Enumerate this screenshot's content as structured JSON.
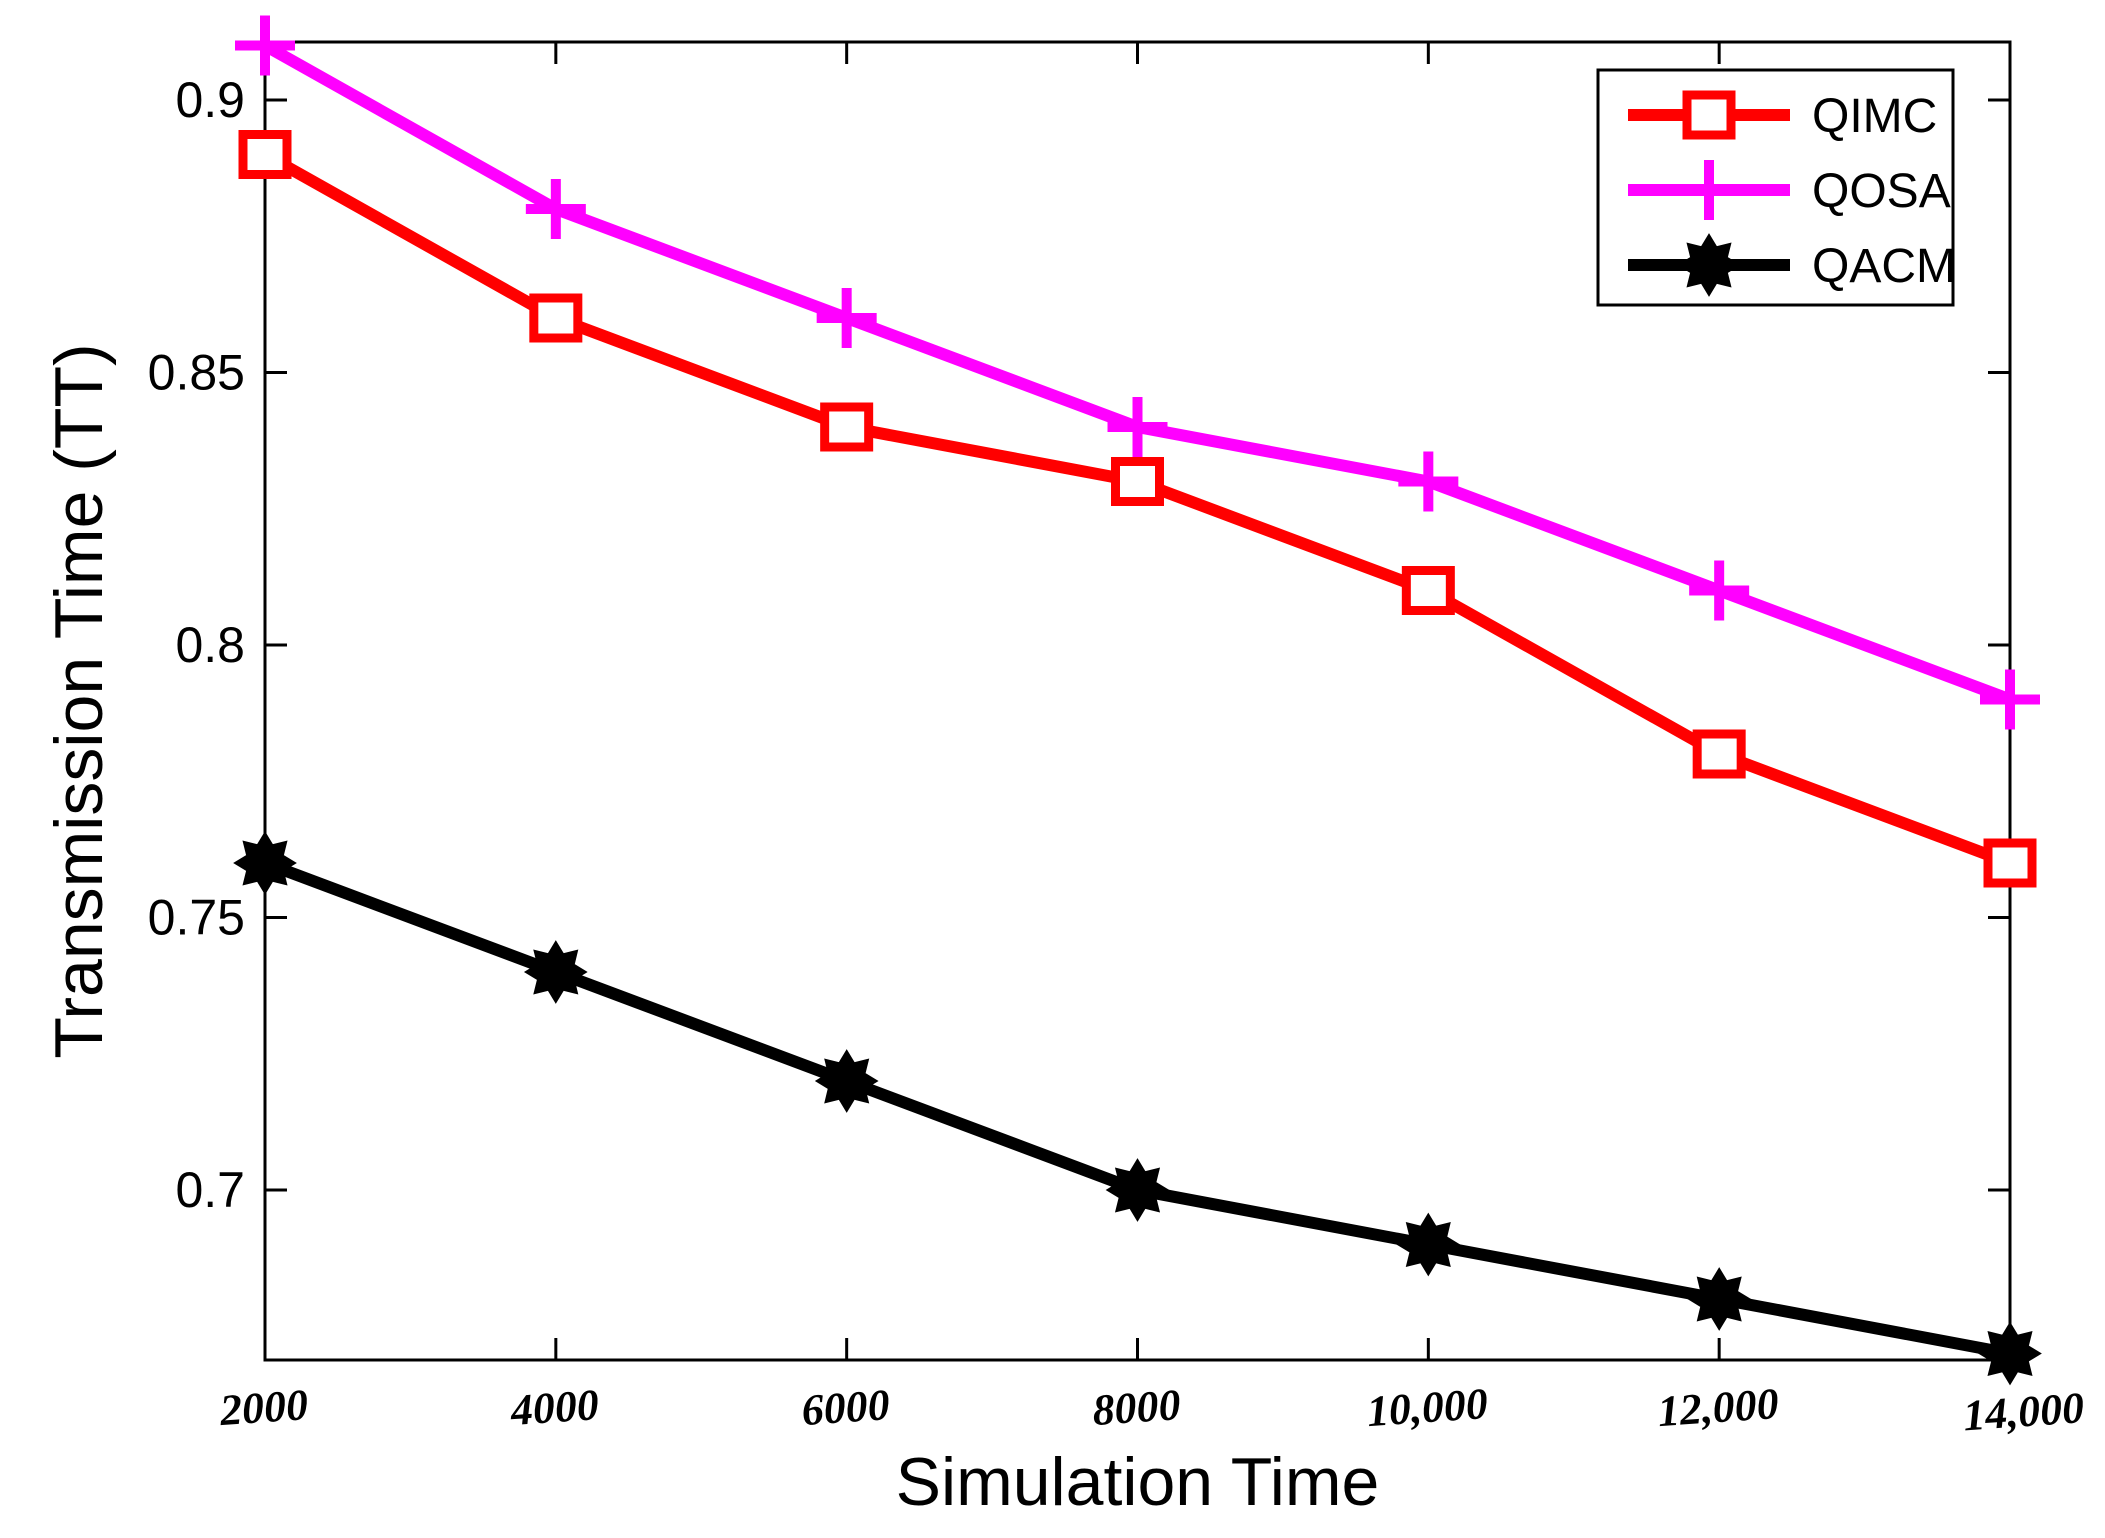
{
  "chart_data": {
    "type": "line",
    "title": "",
    "xlabel": "Simulation Time",
    "ylabel": "Transmission Time (TT)",
    "x": [
      2000,
      4000,
      6000,
      8000,
      10000,
      12000,
      14000
    ],
    "x_tick_labels": [
      "2000",
      "4000",
      "6000",
      "8000",
      "10,000",
      "12,000",
      "14,000"
    ],
    "xlim": [
      2000,
      14000
    ],
    "ylim": [
      0.67,
      0.9
    ],
    "y_ticks": [
      0.7,
      0.75,
      0.8,
      0.85,
      0.9
    ],
    "y_tick_labels": [
      "0.7",
      "0.75",
      "0.8",
      "0.85",
      "0.9"
    ],
    "grid": false,
    "legend_position": "top-right",
    "series": [
      {
        "name": "QIMC",
        "color": "#ff0000",
        "marker": "square",
        "values": [
          0.89,
          0.86,
          0.84,
          0.83,
          0.81,
          0.78,
          0.76
        ]
      },
      {
        "name": "QOSA",
        "color": "#ff00ff",
        "marker": "plus",
        "values": [
          0.91,
          0.88,
          0.86,
          0.84,
          0.83,
          0.81,
          0.79
        ]
      },
      {
        "name": "QACM",
        "color": "#000000",
        "marker": "star",
        "values": [
          0.76,
          0.74,
          0.72,
          0.7,
          0.69,
          0.68,
          0.67
        ]
      }
    ]
  }
}
